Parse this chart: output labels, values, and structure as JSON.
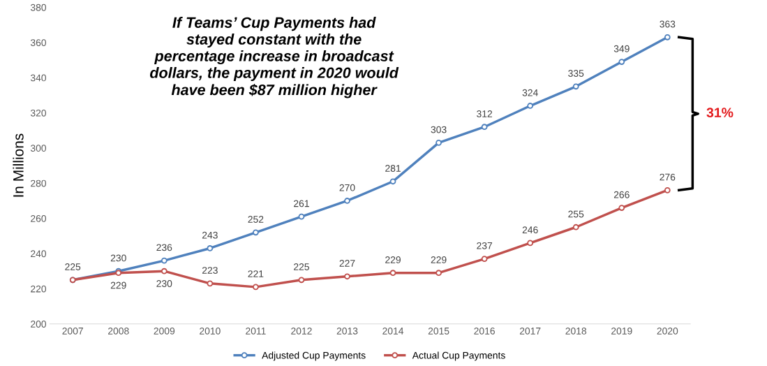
{
  "chart_data": {
    "type": "line",
    "categories": [
      "2007",
      "2008",
      "2009",
      "2010",
      "2011",
      "2012",
      "2013",
      "2014",
      "2015",
      "2016",
      "2017",
      "2018",
      "2019",
      "2020"
    ],
    "series": [
      {
        "name": "Adjusted Cup Payments",
        "color": "#4f81bd",
        "values": [
          225,
          230,
          236,
          243,
          252,
          261,
          270,
          281,
          303,
          312,
          324,
          335,
          349,
          363
        ],
        "value_labels": [
          "225",
          "230",
          "236",
          "243",
          "252",
          "261",
          "270",
          "281",
          "303",
          "312",
          "324",
          "335",
          "349",
          "363"
        ]
      },
      {
        "name": "Actual Cup Payments",
        "color": "#c0504d",
        "values": [
          225,
          229,
          230,
          223,
          221,
          225,
          227,
          229,
          229,
          237,
          246,
          255,
          266,
          276
        ],
        "value_labels": [
          null,
          "229",
          "230",
          "223",
          "221",
          "225",
          "227",
          "229",
          "229",
          "237",
          "246",
          "255",
          "266",
          "276"
        ]
      }
    ],
    "ylabel": "In Millions",
    "ylim": [
      200,
      380
    ],
    "yticks": [
      200,
      220,
      240,
      260,
      280,
      300,
      320,
      340,
      360,
      380
    ],
    "annotations": [
      "If Teams’ Cup Payments had\nstayed constant with the\npercentage increase in broadcast\ndollars, the payment in 2020 would\nhave been $87 million higher",
      "31%"
    ],
    "grid": false,
    "legend": "bottom",
    "marker": "circle",
    "line_style": "solid"
  }
}
